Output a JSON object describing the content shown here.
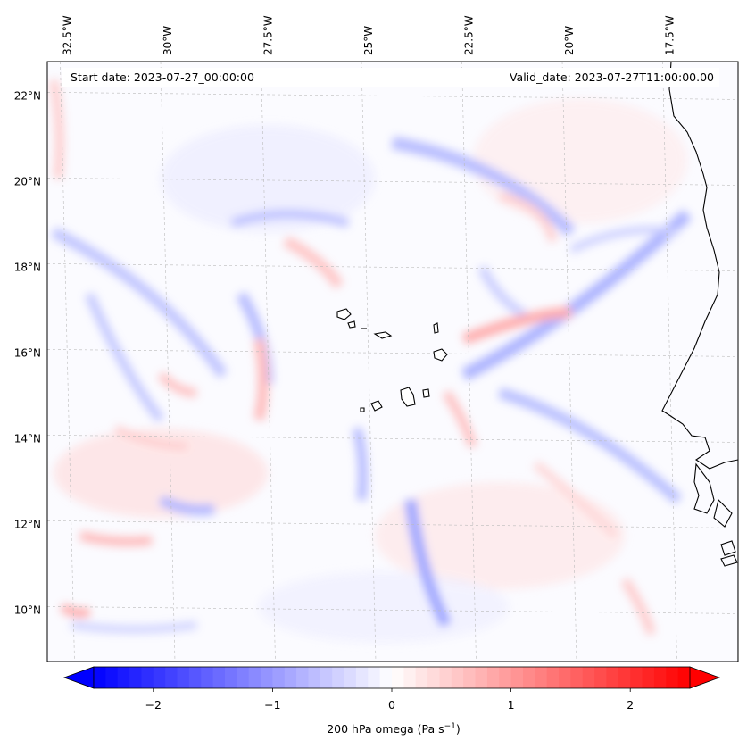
{
  "header": {
    "start_date": "Start date: 2023-07-27_00:00:00",
    "valid_date": "Valid_date: 2023-07-27T11:00:00.00"
  },
  "map": {
    "field": "200 hPa omega",
    "lon_range": [
      -33,
      -15.8
    ],
    "lat_range": [
      8.8,
      22.8
    ],
    "lon_labels": [
      "32.5°W",
      "30°W",
      "27.5°W",
      "25°W",
      "22.5°W",
      "20°W",
      "17.5°W"
    ],
    "lon_values": [
      -32.5,
      -30,
      -27.5,
      -25,
      -22.5,
      -20,
      -17.5
    ],
    "lat_labels": [
      "22°N",
      "20°N",
      "18°N",
      "16°N",
      "14°N",
      "12°N",
      "10°N"
    ],
    "lat_values": [
      22,
      20,
      18,
      16,
      14,
      12,
      10
    ],
    "gridlines": true,
    "colormap": "bwr",
    "coastline_color": "#000000"
  },
  "colorbar": {
    "label_text": "200 hPa omega (Pa s",
    "label_sup": "−1",
    "label_close": ")",
    "range": [
      -2.5,
      2.5
    ],
    "extend": "both",
    "tick_labels": [
      "−2",
      "−1",
      "0",
      "1",
      "2"
    ],
    "tick_values": [
      -2,
      -1,
      0,
      1,
      2
    ],
    "min_color": "#0000ff",
    "mid_color": "#ffffff",
    "max_color": "#ff0000"
  }
}
